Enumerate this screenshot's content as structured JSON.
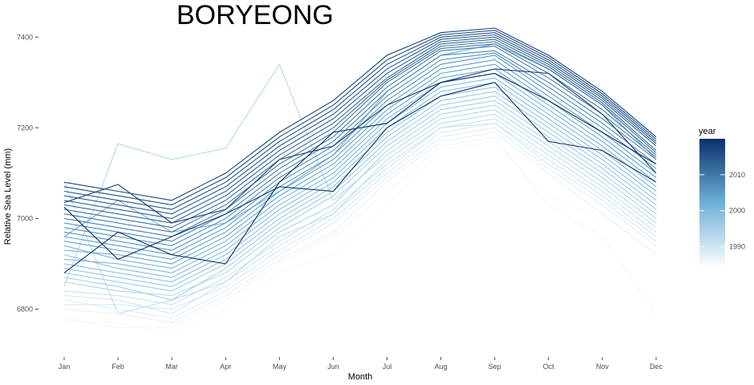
{
  "chart_data": {
    "type": "line",
    "title": "BORYEONG",
    "xlabel": "Month",
    "ylabel": "Relative Sea Level (mm)",
    "categories": [
      "Jan",
      "Feb",
      "Mar",
      "Apr",
      "May",
      "Jun",
      "Jul",
      "Aug",
      "Sep",
      "Oct",
      "Nov",
      "Dec"
    ],
    "ylim": [
      6730,
      7420
    ],
    "yticks": [
      6800,
      7000,
      7200,
      7400
    ],
    "grid": false,
    "legend": {
      "title": "year",
      "placement": "right",
      "type": "colorbar",
      "range": [
        1985,
        2020
      ],
      "ticks": [
        1990,
        2000,
        2010
      ],
      "low_color": "#f7fbff",
      "high_color": "#08306b"
    },
    "series": [
      {
        "year": 1985,
        "values": [
          6775,
          6770,
          6745,
          6800,
          6880,
          6920,
          7030,
          7150,
          7170,
          7050,
          7000,
          6950
        ]
      },
      {
        "year": 1986,
        "values": [
          6780,
          6760,
          6760,
          6820,
          6900,
          6960,
          7060,
          7160,
          7180,
          7030,
          6960,
          6790
        ]
      },
      {
        "year": 1987,
        "values": [
          6800,
          6790,
          6770,
          6830,
          6910,
          6970,
          7080,
          7170,
          7190,
          7100,
          7010,
          6920
        ]
      },
      {
        "year": 1988,
        "values": [
          6820,
          6800,
          6780,
          6840,
          6920,
          6990,
          7090,
          7180,
          7200,
          7110,
          7030,
          6940
        ]
      },
      {
        "year": 1989,
        "values": [
          6810,
          6810,
          6800,
          6850,
          6930,
          7000,
          7100,
          7190,
          7210,
          7120,
          7040,
          6950
        ]
      },
      {
        "year": 1990,
        "values": [
          6830,
          6820,
          6790,
          6860,
          6940,
          7010,
          7110,
          7200,
          7210,
          7130,
          7050,
          6960
        ]
      },
      {
        "year": 1991,
        "values": [
          6840,
          6830,
          6810,
          6870,
          6950,
          7020,
          7120,
          7200,
          7220,
          7140,
          7060,
          6970
        ]
      },
      {
        "year": 1992,
        "values": [
          7080,
          6790,
          6820,
          6860,
          6960,
          7010,
          7130,
          7210,
          7230,
          7150,
          7070,
          6980
        ]
      },
      {
        "year": 1993,
        "values": [
          6850,
          7165,
          7130,
          7155,
          7340,
          7040,
          7140,
          7220,
          7240,
          7160,
          7080,
          6990
        ]
      },
      {
        "year": 1994,
        "values": [
          6860,
          6840,
          6830,
          6880,
          6970,
          7030,
          7150,
          7230,
          7250,
          7170,
          7090,
          7000
        ]
      },
      {
        "year": 1995,
        "values": [
          6870,
          6850,
          6820,
          6890,
          6980,
          7050,
          7160,
          7240,
          7260,
          7180,
          7100,
          7010
        ]
      },
      {
        "year": 1996,
        "values": [
          6880,
          6860,
          6840,
          6900,
          6990,
          7060,
          7170,
          7250,
          7270,
          7190,
          7110,
          7020
        ]
      },
      {
        "year": 1997,
        "values": [
          6890,
          6870,
          6850,
          6910,
          7000,
          7070,
          7180,
          7260,
          7280,
          7200,
          7120,
          7030
        ]
      },
      {
        "year": 1998,
        "values": [
          6900,
          6880,
          6860,
          6920,
          7010,
          7080,
          7190,
          7270,
          7290,
          7210,
          7130,
          7040
        ]
      },
      {
        "year": 1999,
        "values": [
          6920,
          6890,
          6870,
          6930,
          7020,
          7090,
          7200,
          7280,
          7300,
          7220,
          7140,
          7050
        ]
      },
      {
        "year": 2000,
        "values": [
          6910,
          6900,
          6880,
          6940,
          7030,
          7100,
          7210,
          7290,
          7310,
          7230,
          7150,
          7060
        ]
      },
      {
        "year": 2001,
        "values": [
          6940,
          6910,
          6890,
          6950,
          7040,
          7110,
          7220,
          7300,
          7320,
          7240,
          7160,
          7070
        ]
      },
      {
        "year": 2002,
        "values": [
          6960,
          7040,
          6970,
          6990,
          7060,
          7140,
          7280,
          7360,
          7385,
          7330,
          7250,
          7130
        ]
      },
      {
        "year": 2003,
        "values": [
          6930,
          6920,
          6900,
          6960,
          7050,
          7120,
          7230,
          7310,
          7330,
          7250,
          7170,
          7080
        ]
      },
      {
        "year": 2004,
        "values": [
          6950,
          6930,
          6910,
          6970,
          7060,
          7130,
          7240,
          7320,
          7340,
          7260,
          7180,
          7090
        ]
      },
      {
        "year": 2005,
        "values": [
          6960,
          6940,
          6920,
          6980,
          7070,
          7140,
          7250,
          7330,
          7350,
          7270,
          7190,
          7100
        ]
      },
      {
        "year": 2006,
        "values": [
          6970,
          6950,
          6930,
          6990,
          7080,
          7150,
          7260,
          7340,
          7360,
          7280,
          7200,
          7110
        ]
      },
      {
        "year": 2007,
        "values": [
          6980,
          6960,
          6940,
          7000,
          7090,
          7160,
          7270,
          7350,
          7365,
          7290,
          7210,
          7120
        ]
      },
      {
        "year": 2008,
        "values": [
          6990,
          6970,
          6950,
          7010,
          7100,
          7170,
          7280,
          7360,
          7370,
          7300,
          7220,
          7130
        ]
      },
      {
        "year": 2009,
        "values": [
          7000,
          6980,
          6960,
          7020,
          7110,
          7180,
          7290,
          7370,
          7380,
          7310,
          7230,
          7135
        ]
      },
      {
        "year": 2010,
        "values": [
          7010,
          6990,
          6970,
          7030,
          7120,
          7190,
          7300,
          7375,
          7385,
          7320,
          7240,
          7140
        ]
      },
      {
        "year": 2011,
        "values": [
          7020,
          7000,
          6980,
          7040,
          7130,
          7200,
          7305,
          7380,
          7390,
          7330,
          7250,
          7145
        ]
      },
      {
        "year": 2012,
        "values": [
          7030,
          7010,
          6990,
          7050,
          7140,
          7210,
          7310,
          7385,
          7395,
          7335,
          7255,
          7150
        ]
      },
      {
        "year": 2013,
        "values": [
          7040,
          7020,
          7000,
          7060,
          7150,
          7220,
          7320,
          7390,
          7400,
          7340,
          7260,
          7160
        ]
      },
      {
        "year": 2014,
        "values": [
          7050,
          7030,
          7010,
          7070,
          7160,
          7230,
          7330,
          7395,
          7405,
          7345,
          7265,
          7165
        ]
      },
      {
        "year": 2015,
        "values": [
          7060,
          7040,
          7020,
          7080,
          7170,
          7240,
          7340,
          7400,
          7410,
          7350,
          7270,
          7170
        ]
      },
      {
        "year": 2016,
        "values": [
          7070,
          7050,
          7030,
          7090,
          7180,
          7250,
          7350,
          7405,
          7415,
          7355,
          7275,
          7175
        ]
      },
      {
        "year": 2017,
        "values": [
          7080,
          7060,
          7040,
          7100,
          7190,
          7260,
          7360,
          7410,
          7420,
          7360,
          7280,
          7180
        ]
      },
      {
        "year": 2018,
        "values": [
          7035,
          7075,
          6990,
          7020,
          7130,
          7160,
          7250,
          7300,
          7330,
          7320,
          7230,
          7100
        ]
      },
      {
        "year": 2019,
        "values": [
          7025,
          6910,
          6960,
          7010,
          7070,
          7060,
          7200,
          7270,
          7300,
          7170,
          7150,
          7080
        ]
      },
      {
        "year": 2020,
        "values": [
          6880,
          6970,
          6920,
          6900,
          7080,
          7190,
          7210,
          7300,
          7320,
          7260,
          7190,
          7120
        ]
      }
    ]
  }
}
